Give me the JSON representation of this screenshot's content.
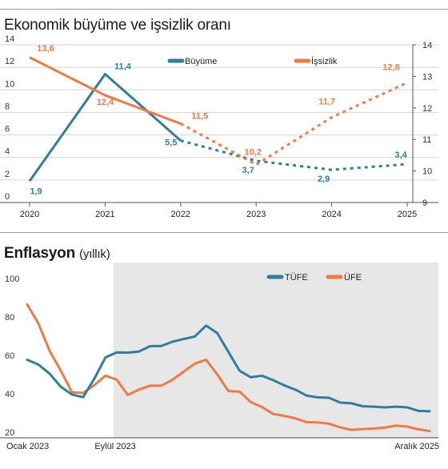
{
  "chart1": {
    "title": "Ekonomik büyüme ve işsizlik oranı",
    "chart_data": {
      "type": "line",
      "x": [
        "2020",
        "2021",
        "2022",
        "2023",
        "2024",
        "2025"
      ],
      "y_left_ticks": [
        "14",
        "12",
        "10",
        "8",
        "6",
        "4",
        "2",
        "0"
      ],
      "y_right_ticks": [
        "14",
        "13",
        "12",
        "11",
        "10",
        "9"
      ],
      "ylim_left": [
        0,
        14
      ],
      "ylim_right": [
        9,
        14
      ],
      "grid": true,
      "legend_position": "top",
      "series": [
        {
          "name": "Büyüme",
          "axis": "left",
          "color": "#2e7f9e",
          "values": [
            1.9,
            11.4,
            5.5,
            3.7,
            2.9,
            3.4
          ],
          "labels": [
            "1,9",
            "11,4",
            "5,5",
            "3,7",
            "2,9",
            "3,4"
          ],
          "forecast_from_index": 2
        },
        {
          "name": "İşsizlik",
          "axis": "right",
          "color": "#ef7a45",
          "values": [
            13.6,
            12.4,
            11.5,
            10.2,
            11.7,
            12.8
          ],
          "labels": [
            "13,6",
            "12,4",
            "11,5",
            "10,2",
            "11,7",
            "12,8"
          ],
          "forecast_from_index": 2
        }
      ]
    }
  },
  "chart2": {
    "title": "Enflasyon",
    "subtitle": "(yıllık)",
    "chart_data": {
      "type": "line",
      "x_tick_labels": [
        "Ocak 2023",
        "Eylül 2023",
        "Aralık 2025"
      ],
      "y_ticks": [
        "100",
        "80",
        "60",
        "40",
        "20"
      ],
      "ylim": [
        20,
        100
      ],
      "grid": false,
      "legend_position": "top-right",
      "shaded_from_index": 8,
      "series": [
        {
          "name": "TÜFE",
          "color": "#2e7f9e",
          "values": [
            57.7,
            55.2,
            50.5,
            43.7,
            39.6,
            38.2,
            47.8,
            58.9,
            61.5,
            61.4,
            62,
            64.8,
            64.9,
            67.1,
            68.5,
            69.8,
            75.5,
            71.6,
            61.8,
            51.97,
            48.6,
            49.4,
            47.1,
            44.4,
            42.1,
            39.05,
            38.1,
            37.9,
            35.4,
            35.05,
            33.5,
            33.3,
            32.9,
            33.3,
            32.9,
            31.1,
            30.9
          ]
        },
        {
          "name": "ÜFE",
          "color": "#ef7a45",
          "values": [
            86.5,
            76.6,
            62.4,
            52.1,
            40.8,
            40.4,
            44.5,
            49.4,
            47.4,
            39.4,
            42.2,
            44.2,
            44.2,
            47.3,
            51.5,
            55.7,
            57.7,
            50.1,
            41.4,
            41.1,
            35.7,
            33.1,
            29.5,
            28.5,
            27.2,
            25.2,
            25.1,
            24.4,
            22.5,
            21.2,
            21.6,
            21.9,
            22.4,
            23.4,
            22.9,
            21.5,
            20.6
          ]
        }
      ]
    }
  }
}
